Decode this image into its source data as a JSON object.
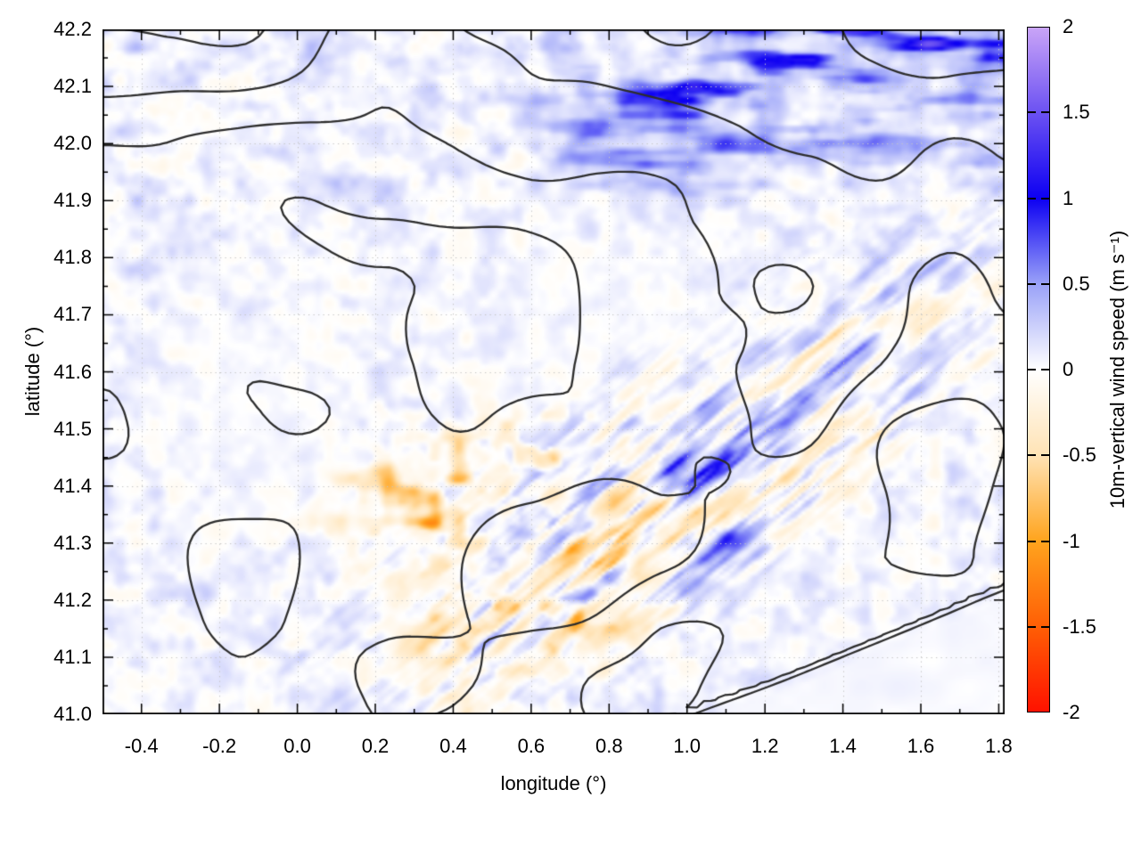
{
  "chart_data": {
    "type": "heatmap",
    "title": "",
    "xlabel": "longitude (°)",
    "ylabel": "latitude (°)",
    "xlim": [
      -0.5,
      1.815
    ],
    "ylim": [
      41.0,
      42.2
    ],
    "grid": {
      "shown": true,
      "style": "dotted",
      "color": "#c4c4c4"
    },
    "x_ticks": [
      {
        "value": -0.4,
        "label": "-0.4"
      },
      {
        "value": -0.2,
        "label": "-0.2"
      },
      {
        "value": 0.0,
        "label": "0.0"
      },
      {
        "value": 0.2,
        "label": "0.2"
      },
      {
        "value": 0.4,
        "label": "0.4"
      },
      {
        "value": 0.6,
        "label": "0.6"
      },
      {
        "value": 0.8,
        "label": "0.8"
      },
      {
        "value": 1.0,
        "label": "1.0"
      },
      {
        "value": 1.2,
        "label": "1.2"
      },
      {
        "value": 1.4,
        "label": "1.4"
      },
      {
        "value": 1.6,
        "label": "1.6"
      },
      {
        "value": 1.8,
        "label": "1.8"
      }
    ],
    "x_minor_step": 0.1,
    "y_ticks": [
      {
        "value": 41.0,
        "label": "41.0"
      },
      {
        "value": 41.1,
        "label": "41.1"
      },
      {
        "value": 41.2,
        "label": "41.2"
      },
      {
        "value": 41.3,
        "label": "41.3"
      },
      {
        "value": 41.4,
        "label": "41.4"
      },
      {
        "value": 41.5,
        "label": "41.5"
      },
      {
        "value": 41.6,
        "label": "41.6"
      },
      {
        "value": 41.7,
        "label": "41.7"
      },
      {
        "value": 41.8,
        "label": "41.8"
      },
      {
        "value": 41.9,
        "label": "41.9"
      },
      {
        "value": 42.0,
        "label": "42.0"
      },
      {
        "value": 42.1,
        "label": "42.1"
      },
      {
        "value": 42.2,
        "label": "42.2"
      }
    ],
    "y_minor_step": 0.05,
    "colorbar": {
      "label": "10m-vertical wind speed (m s⁻¹)",
      "range": [
        -2,
        2
      ],
      "ticks": [
        {
          "value": 2,
          "label": "2"
        },
        {
          "value": 1.5,
          "label": "1.5"
        },
        {
          "value": 1,
          "label": "1"
        },
        {
          "value": 0.5,
          "label": "0.5"
        },
        {
          "value": 0,
          "label": "0"
        },
        {
          "value": -0.5,
          "label": "-0.5"
        },
        {
          "value": -1,
          "label": "-1"
        },
        {
          "value": -1.5,
          "label": "-1.5"
        },
        {
          "value": -2,
          "label": "-2"
        }
      ],
      "stops": [
        {
          "value": -2,
          "color": "#ff1200"
        },
        {
          "value": -1.5,
          "color": "#ff5f05"
        },
        {
          "value": -1,
          "color": "#ffa41e"
        },
        {
          "value": -0.5,
          "color": "#ffe3b5"
        },
        {
          "value": 0,
          "color": "#ffffff"
        },
        {
          "value": 0.5,
          "color": "#9aa2f8"
        },
        {
          "value": 1,
          "color": "#0d00f2"
        },
        {
          "value": 1.5,
          "color": "#6b51f2"
        },
        {
          "value": 2,
          "color": "#c9a4f7"
        }
      ]
    },
    "contours": {
      "color": "#2d2d2d",
      "meaning": "terrain elevation contour lines overlaid in black"
    },
    "field": {
      "variable": "10 m vertical wind speed",
      "units": "m s⁻¹",
      "features": [
        "strong positive (blue, up to ~2 m/s) speckle over the northeast corner, lon 0.9–1.8, lat 41.9–42.2",
        "alternating positive/negative wave bands (about ±1.5 m/s) along the SW–NE oriented coastal mountain ridge, lon 0.3–1.6, lat 41.1–41.8",
        "negative (orange, −0.5 to −1 m/s) patches in the south-central area, lon 0.2–0.9, lat 41.0–41.5",
        "nearly uniform near-zero field over the sea in the southeast corner below the coastline contour",
        "weak speckled field (±0.3 m/s) over the plains in the west and centre",
        "dotted light-grey graticule at every labelled tick"
      ]
    }
  }
}
